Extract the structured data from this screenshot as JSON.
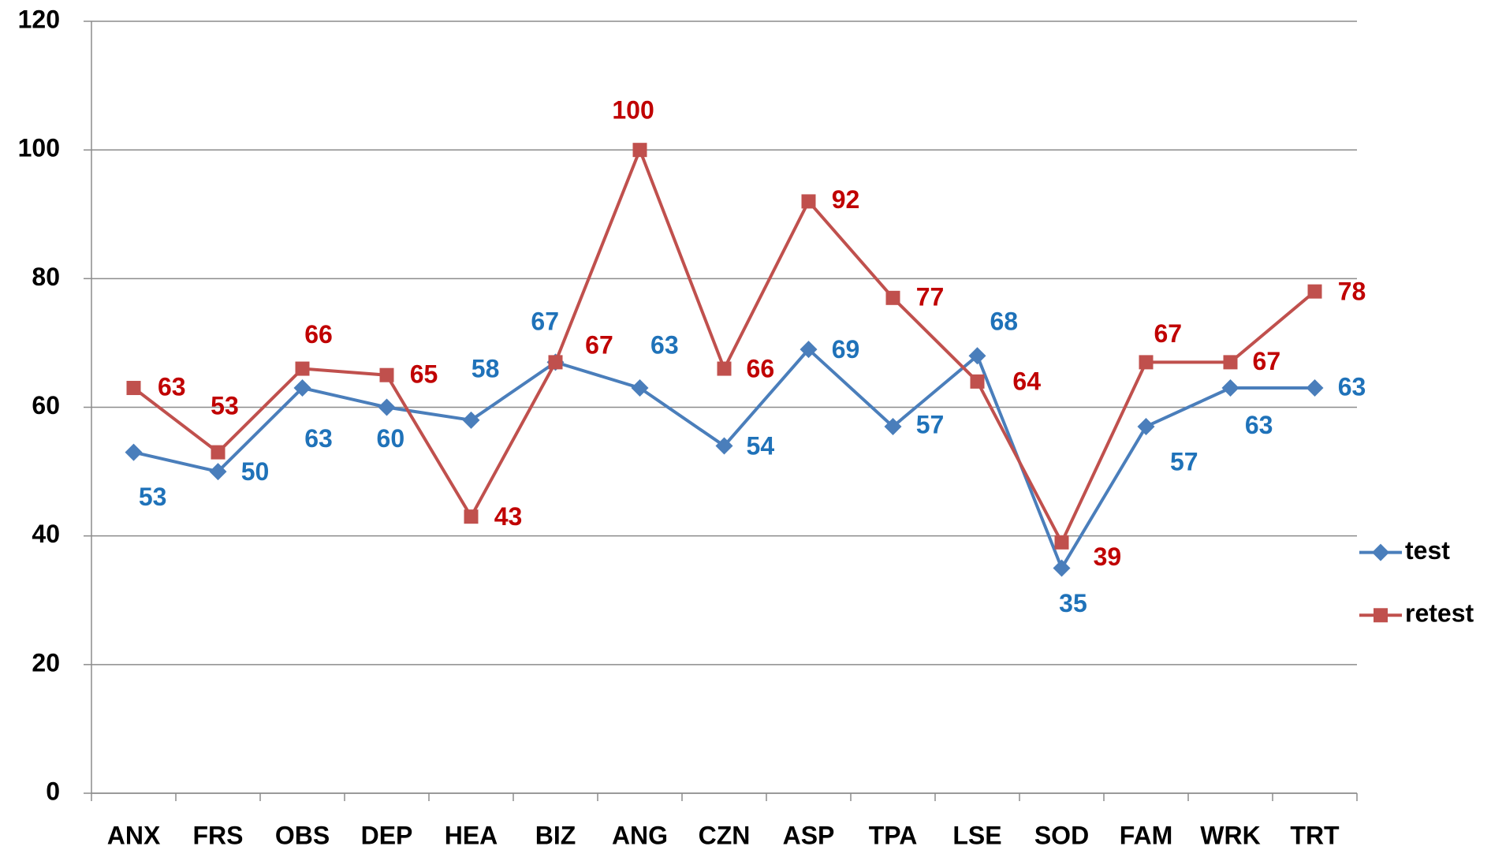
{
  "chart_data": {
    "type": "line",
    "categories": [
      "ANX",
      "FRS",
      "OBS",
      "DEP",
      "HEA",
      "BIZ",
      "ANG",
      "CZN",
      "ASP",
      "TPA",
      "LSE",
      "SOD",
      "FAM",
      "WRK",
      "TRT"
    ],
    "series": [
      {
        "name": "test",
        "color": "#4a7ebb",
        "label_color": "#1f72b9",
        "marker": "diamond",
        "values": [
          53,
          50,
          63,
          60,
          58,
          67,
          63,
          54,
          69,
          57,
          68,
          35,
          57,
          63,
          63
        ]
      },
      {
        "name": "retest",
        "color": "#c0504d",
        "label_color": "#c00000",
        "marker": "square",
        "values": [
          63,
          53,
          66,
          65,
          43,
          67,
          100,
          66,
          92,
          77,
          64,
          39,
          67,
          67,
          78
        ]
      }
    ],
    "ylim": [
      0,
      120
    ],
    "yticks": [
      0,
      20,
      40,
      60,
      80,
      100,
      120
    ],
    "grid": true,
    "legend": "right"
  }
}
